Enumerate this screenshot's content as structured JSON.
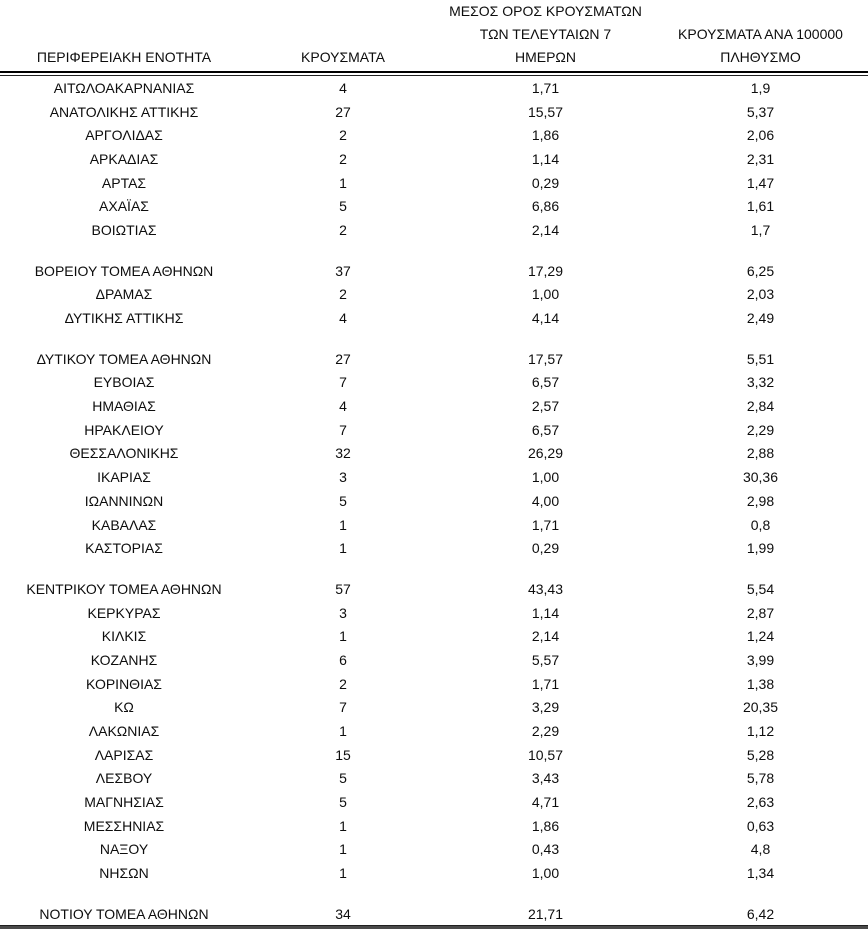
{
  "table": {
    "header": {
      "region": "ΠΕΡΙΦΕΡΕΙΑΚΗ ΕΝΟΤΗΤΑ",
      "cases": "ΚΡΟΥΣΜΑΤΑ",
      "avg7": "ΜΕΣΟΣ ΟΡΟΣ ΚΡΟΥΣΜΑΤΩΝ\nΤΩΝ ΤΕΛΕΥΤΑΙΩΝ 7\nΗΜΕΡΩΝ",
      "per100k": "ΚΡΟΥΣΜΑΤΑ ΑΝΑ 100000\nΠΛΗΘΥΣΜΟ"
    }
  },
  "chart_data": {
    "type": "table",
    "columns": [
      "ΠΕΡΙΦΕΡΕΙΑΚΗ ΕΝΟΤΗΤΑ",
      "ΚΡΟΥΣΜΑΤΑ",
      "ΜΕΣΟΣ ΟΡΟΣ ΚΡΟΥΣΜΑΤΩΝ ΤΩΝ ΤΕΛΕΥΤΑΙΩΝ 7 ΗΜΕΡΩΝ",
      "ΚΡΟΥΣΜΑΤΑ ΑΝΑ 100000 ΠΛΗΘΥΣΜΟ"
    ],
    "sections": [
      {
        "rows": [
          [
            "ΑΙΤΩΛΟΑΚΑΡΝΑΝΙΑΣ",
            "4",
            "1,71",
            "1,9"
          ],
          [
            "ΑΝΑΤΟΛΙΚΗΣ ΑΤΤΙΚΗΣ",
            "27",
            "15,57",
            "5,37"
          ],
          [
            "ΑΡΓΟΛΙΔΑΣ",
            "2",
            "1,86",
            "2,06"
          ],
          [
            "ΑΡΚΑΔΙΑΣ",
            "2",
            "1,14",
            "2,31"
          ],
          [
            "ΑΡΤΑΣ",
            "1",
            "0,29",
            "1,47"
          ],
          [
            "ΑΧΑΪΑΣ",
            "5",
            "6,86",
            "1,61"
          ],
          [
            "ΒΟΙΩΤΙΑΣ",
            "2",
            "2,14",
            "1,7"
          ]
        ]
      },
      {
        "rows": [
          [
            "ΒΟΡΕΙΟΥ ΤΟΜΕΑ ΑΘΗΝΩΝ",
            "37",
            "17,29",
            "6,25"
          ],
          [
            "ΔΡΑΜΑΣ",
            "2",
            "1,00",
            "2,03"
          ],
          [
            "ΔΥΤΙΚΗΣ ΑΤΤΙΚΗΣ",
            "4",
            "4,14",
            "2,49"
          ]
        ]
      },
      {
        "rows": [
          [
            "ΔΥΤΙΚΟΥ ΤΟΜΕΑ ΑΘΗΝΩΝ",
            "27",
            "17,57",
            "5,51"
          ],
          [
            "ΕΥΒΟΙΑΣ",
            "7",
            "6,57",
            "3,32"
          ],
          [
            "ΗΜΑΘΙΑΣ",
            "4",
            "2,57",
            "2,84"
          ],
          [
            "ΗΡΑΚΛΕΙΟΥ",
            "7",
            "6,57",
            "2,29"
          ],
          [
            "ΘΕΣΣΑΛΟΝΙΚΗΣ",
            "32",
            "26,29",
            "2,88"
          ],
          [
            "ΙΚΑΡΙΑΣ",
            "3",
            "1,00",
            "30,36"
          ],
          [
            "ΙΩΑΝΝΙΝΩΝ",
            "5",
            "4,00",
            "2,98"
          ],
          [
            "ΚΑΒΑΛΑΣ",
            "1",
            "1,71",
            "0,8"
          ],
          [
            "ΚΑΣΤΟΡΙΑΣ",
            "1",
            "0,29",
            "1,99"
          ]
        ]
      },
      {
        "rows": [
          [
            "ΚΕΝΤΡΙΚΟΥ ΤΟΜΕΑ ΑΘΗΝΩΝ",
            "57",
            "43,43",
            "5,54"
          ],
          [
            "ΚΕΡΚΥΡΑΣ",
            "3",
            "1,14",
            "2,87"
          ],
          [
            "ΚΙΛΚΙΣ",
            "1",
            "2,14",
            "1,24"
          ],
          [
            "ΚΟΖΑΝΗΣ",
            "6",
            "5,57",
            "3,99"
          ],
          [
            "ΚΟΡΙΝΘΙΑΣ",
            "2",
            "1,71",
            "1,38"
          ],
          [
            "ΚΩ",
            "7",
            "3,29",
            "20,35"
          ],
          [
            "ΛΑΚΩΝΙΑΣ",
            "1",
            "2,29",
            "1,12"
          ],
          [
            "ΛΑΡΙΣΑΣ",
            "15",
            "10,57",
            "5,28"
          ],
          [
            "ΛΕΣΒΟΥ",
            "5",
            "3,43",
            "5,78"
          ],
          [
            "ΜΑΓΝΗΣΙΑΣ",
            "5",
            "4,71",
            "2,63"
          ],
          [
            "ΜΕΣΣΗΝΙΑΣ",
            "1",
            "1,86",
            "0,63"
          ],
          [
            "ΝΑΞΟΥ",
            "1",
            "0,43",
            "4,8"
          ],
          [
            "ΝΗΣΩΝ",
            "1",
            "1,00",
            "1,34"
          ]
        ]
      },
      {
        "rows": [
          [
            "ΝΟΤΙΟΥ ΤΟΜΕΑ ΑΘΗΝΩΝ",
            "34",
            "21,71",
            "6,42"
          ]
        ]
      }
    ]
  }
}
